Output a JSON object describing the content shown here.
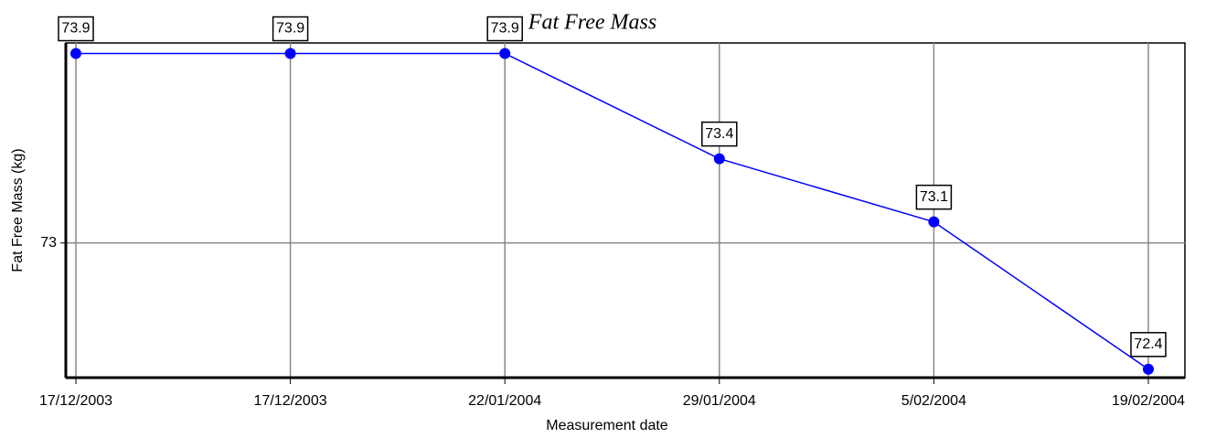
{
  "chart_data": {
    "type": "line",
    "title": "Fat Free Mass",
    "x_label": "Measurement date",
    "y_label": "Fat Free Mass (kg)",
    "categories": [
      "17/12/2003",
      "17/12/2003",
      "22/01/2004",
      "29/01/2004",
      "5/02/2004",
      "19/02/2004"
    ],
    "series": [
      {
        "name": "Fat Free Mass",
        "color": "#0000ff",
        "values": [
          73.9,
          73.9,
          73.9,
          73.4,
          73.1,
          72.4
        ]
      }
    ],
    "ylim": [
      72.36,
      73.95
    ],
    "yticks": [
      73
    ],
    "grid": true
  }
}
